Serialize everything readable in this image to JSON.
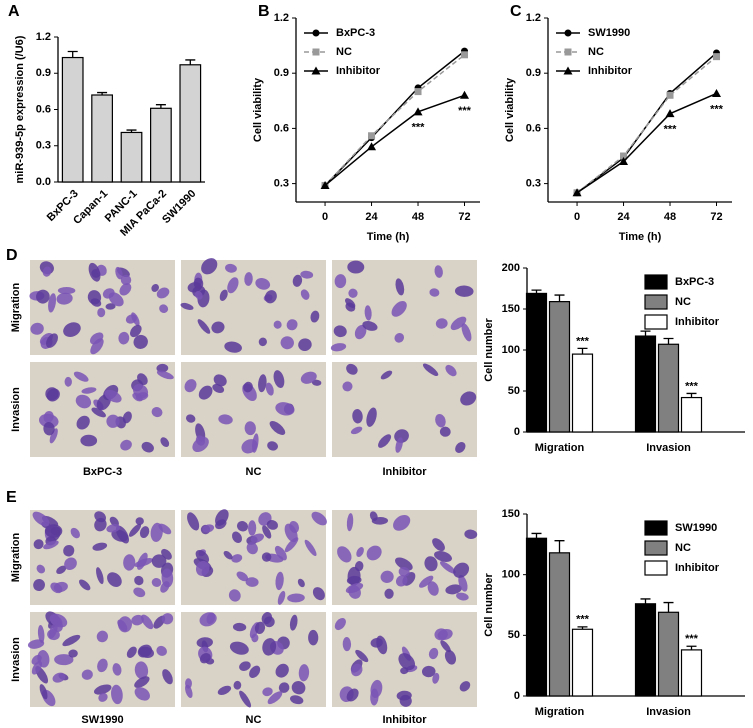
{
  "panels": [
    "A",
    "B",
    "C",
    "D",
    "E"
  ],
  "micrographs": [
    {
      "rows": [
        "Migration",
        "Invasion"
      ],
      "columns": [
        "BxPC-3",
        "NC",
        "Inhibitor"
      ]
    },
    {
      "rows": [
        "Migration",
        "Invasion"
      ],
      "columns": [
        "SW1990",
        "NC",
        "Inhibitor"
      ]
    }
  ],
  "chart_data": [
    {
      "type": "bar",
      "ylabel": "miR-939-5p expression (/U6)",
      "categories": [
        "BxPC-3",
        "Capan-1",
        "PANC-1",
        "MIA PaCa-2",
        "SW1990"
      ],
      "values": [
        1.03,
        0.72,
        0.41,
        0.61,
        0.97
      ],
      "errors": [
        0.05,
        0.02,
        0.02,
        0.03,
        0.04
      ],
      "color": "#d3d3d3",
      "xtick_rotation": -45,
      "ylim": [
        0,
        1.2
      ],
      "yticks": [
        {
          "value": 0,
          "label": "0.0"
        },
        0.3,
        0.6,
        0.9,
        1.2
      ]
    },
    {
      "type": "line",
      "xlabel": "Time (h)",
      "ylabel": "Cell viability",
      "x": [
        0,
        24,
        48,
        72
      ],
      "xlim": [
        -15,
        80
      ],
      "xticks": [
        0,
        24,
        48,
        72
      ],
      "ylim": [
        0.2,
        1.2
      ],
      "yticks": [
        0.3,
        0.6,
        0.9,
        1.2
      ],
      "legend": "upper left",
      "series": [
        {
          "name": "BxPC-3",
          "color": "#000000",
          "marker": "circle",
          "dashed": false,
          "values": [
            0.29,
            0.55,
            0.82,
            1.02
          ]
        },
        {
          "name": "NC",
          "color": "#999999",
          "marker": "square",
          "dashed": true,
          "values": [
            0.29,
            0.56,
            0.8,
            1.0
          ]
        },
        {
          "name": "Inhibitor",
          "color": "#000000",
          "marker": "triangle",
          "dashed": false,
          "values": [
            0.29,
            0.5,
            0.69,
            0.78
          ]
        }
      ],
      "annotations": [
        {
          "text": "***",
          "series": 2,
          "index": 2
        },
        {
          "text": "***",
          "series": 2,
          "index": 3
        }
      ]
    },
    {
      "type": "line",
      "xlabel": "Time (h)",
      "ylabel": "Cell viability",
      "x": [
        0,
        24,
        48,
        72
      ],
      "xlim": [
        -15,
        80
      ],
      "xticks": [
        0,
        24,
        48,
        72
      ],
      "ylim": [
        0.2,
        1.2
      ],
      "yticks": [
        0.3,
        0.6,
        0.9,
        1.2
      ],
      "legend": "upper left",
      "series": [
        {
          "name": "SW1990",
          "color": "#000000",
          "marker": "circle",
          "dashed": false,
          "values": [
            0.25,
            0.44,
            0.79,
            1.01
          ]
        },
        {
          "name": "NC",
          "color": "#999999",
          "marker": "square",
          "dashed": true,
          "values": [
            0.25,
            0.45,
            0.78,
            0.99
          ]
        },
        {
          "name": "Inhibitor",
          "color": "#000000",
          "marker": "triangle",
          "dashed": false,
          "values": [
            0.25,
            0.42,
            0.68,
            0.79
          ]
        }
      ],
      "annotations": [
        {
          "text": "***",
          "series": 2,
          "index": 2
        },
        {
          "text": "***",
          "series": 2,
          "index": 3
        }
      ]
    },
    {
      "type": "grouped_bar",
      "ylabel": "Cell number",
      "categories": [
        "Migration",
        "Invasion"
      ],
      "ylim": [
        0,
        200
      ],
      "yticks": [
        0,
        50,
        100,
        150,
        200
      ],
      "legend": "upper right",
      "series": [
        {
          "name": "BxPC-3",
          "color": "#000000",
          "values": [
            169,
            117
          ],
          "errors": [
            4,
            6
          ]
        },
        {
          "name": "NC",
          "color": "#808080",
          "values": [
            159,
            107
          ],
          "errors": [
            8,
            7
          ]
        },
        {
          "name": "Inhibitor",
          "color": "#ffffff",
          "values": [
            95,
            42
          ],
          "errors": [
            7,
            5
          ]
        }
      ],
      "annotations": [
        {
          "text": "***",
          "series": 2,
          "index": 0
        },
        {
          "text": "***",
          "series": 2,
          "index": 1
        }
      ]
    },
    {
      "type": "grouped_bar",
      "ylabel": "Cell number",
      "categories": [
        "Migration",
        "Invasion"
      ],
      "ylim": [
        0,
        150
      ],
      "yticks": [
        0,
        50,
        100,
        150
      ],
      "legend": "upper right",
      "series": [
        {
          "name": "SW1990",
          "color": "#000000",
          "values": [
            130,
            76
          ],
          "errors": [
            4,
            4
          ]
        },
        {
          "name": "NC",
          "color": "#808080",
          "values": [
            118,
            69
          ],
          "errors": [
            10,
            8
          ]
        },
        {
          "name": "Inhibitor",
          "color": "#ffffff",
          "values": [
            55,
            38
          ],
          "errors": [
            2,
            3
          ]
        }
      ],
      "annotations": [
        {
          "text": "***",
          "series": 2,
          "index": 0
        },
        {
          "text": "***",
          "series": 2,
          "index": 1
        }
      ]
    }
  ]
}
